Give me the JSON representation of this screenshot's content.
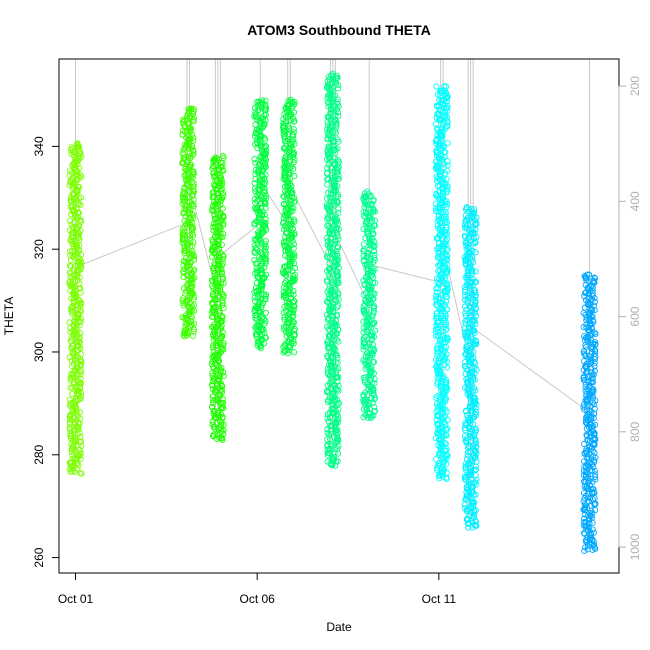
{
  "chart_data": {
    "type": "scatter",
    "title": "ATOM3 Southbound THETA",
    "xlabel": "Date",
    "ylabel": "THETA",
    "x_tick_labels": [
      "Oct 01",
      "Oct 06",
      "Oct 11"
    ],
    "x_tick_dates": [
      "2014-10-01",
      "2014-10-06",
      "2014-10-11"
    ],
    "xlim": [
      "2014-09-30T13:05",
      "2014-10-15T23:00"
    ],
    "ylim": [
      257,
      357
    ],
    "y_ticks": [
      260,
      280,
      300,
      320,
      340
    ],
    "right_axis": {
      "ylim": [
        1045,
        153
      ],
      "ticks": [
        200,
        400,
        600,
        800,
        1000
      ],
      "color": "#b0b0b0"
    },
    "grid": false,
    "legend": "none",
    "point_style": "open circle",
    "profile_line_color": "#c8c8c8",
    "series": [
      {
        "time": "2014-10-01T00:00",
        "theta_min": 276.5,
        "theta_max": 340.5,
        "color": "#7cff00"
      },
      {
        "time": "2014-10-04T02:30",
        "theta_min": 303.0,
        "theta_max": 347.5,
        "color": "#3cff00"
      },
      {
        "time": "2014-10-04T22:00",
        "theta_min": 283.0,
        "theta_max": 338.0,
        "color": "#20ff00"
      },
      {
        "time": "2014-10-06T02:00",
        "theta_min": 301.0,
        "theta_max": 349.0,
        "color": "#00ff40"
      },
      {
        "time": "2014-10-06T21:00",
        "theta_min": 300.0,
        "theta_max": 349.0,
        "color": "#00ff40"
      },
      {
        "time": "2014-10-08T02:00",
        "theta_min": 278.0,
        "theta_max": 354.0,
        "color": "#00ff88"
      },
      {
        "time": "2014-10-09T02:00",
        "theta_min": 287.0,
        "theta_max": 331.0,
        "color": "#00ff90"
      },
      {
        "time": "2014-10-11T02:00",
        "theta_min": 275.5,
        "theta_max": 351.5,
        "color": "#00ffff"
      },
      {
        "time": "2014-10-11T21:00",
        "theta_min": 266.0,
        "theta_max": 328.0,
        "color": "#00f0ff"
      },
      {
        "time": "2014-10-15T03:30",
        "theta_min": 261.5,
        "theta_max": 315.0,
        "color": "#00a8ff"
      }
    ]
  }
}
